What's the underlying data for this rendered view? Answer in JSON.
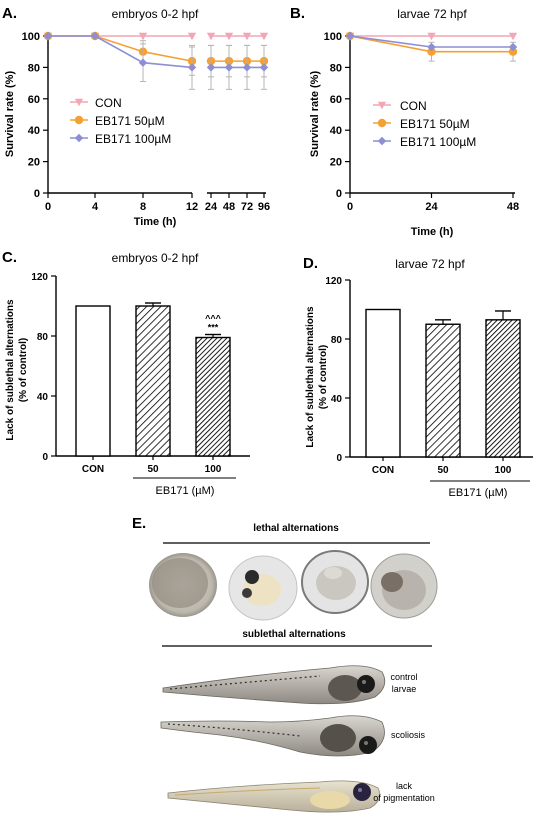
{
  "colors": {
    "con": "#f4a6b4",
    "eb50": "#f5a033",
    "eb100": "#8c8fd6",
    "axis": "#000000",
    "error": "#b5b5b5"
  },
  "panels": {
    "A": {
      "letter": "A."
    },
    "B": {
      "letter": "B."
    },
    "C": {
      "letter": "C."
    },
    "D": {
      "letter": "D."
    },
    "E": {
      "letter": "E."
    }
  },
  "chart_data": [
    {
      "id": "A",
      "type": "line",
      "title": "embryos 0-2 hpf",
      "xlabel": "Time (h)",
      "ylabel": "Survival rate (%)",
      "x_ticks": [
        "0",
        "4",
        "8",
        "12",
        "24",
        "48",
        "72",
        "96"
      ],
      "x_break": "between 12 and 24",
      "y_ticks": [
        "0",
        "20",
        "40",
        "60",
        "80",
        "100"
      ],
      "ylim": [
        0,
        100
      ],
      "legend": "inside-left",
      "series": [
        {
          "name": "CON",
          "marker": "triangle-down",
          "x": [
            "0",
            "4",
            "8",
            "12",
            "24",
            "48",
            "72",
            "96"
          ],
          "values": [
            100,
            100,
            100,
            100,
            100,
            100,
            100,
            100
          ],
          "err": [
            0,
            0,
            0,
            0,
            0,
            0,
            0,
            0
          ]
        },
        {
          "name": "EB171 50µM",
          "marker": "circle",
          "x": [
            "0",
            "4",
            "8",
            "12",
            "24",
            "48",
            "72",
            "96"
          ],
          "values": [
            100,
            100,
            90,
            84,
            84,
            84,
            84,
            84
          ],
          "err": [
            0,
            0,
            7,
            9,
            10,
            10,
            10,
            10
          ]
        },
        {
          "name": "EB171 100µM",
          "marker": "diamond",
          "x": [
            "0",
            "4",
            "8",
            "12",
            "24",
            "48",
            "72",
            "96"
          ],
          "values": [
            100,
            100,
            83,
            80,
            80,
            80,
            80,
            80
          ],
          "err": [
            0,
            0,
            12,
            14,
            14,
            14,
            14,
            14
          ]
        }
      ]
    },
    {
      "id": "B",
      "type": "line",
      "title": "larvae 72 hpf",
      "xlabel": "Time (h)",
      "ylabel": "Survival rate (%)",
      "x_ticks": [
        "0",
        "24",
        "48"
      ],
      "y_ticks": [
        "0",
        "20",
        "40",
        "60",
        "80",
        "100"
      ],
      "ylim": [
        0,
        100
      ],
      "xlim": [
        0,
        48
      ],
      "legend": "inside-center",
      "series": [
        {
          "name": "CON",
          "marker": "triangle-down",
          "x": [
            0,
            24,
            48
          ],
          "values": [
            100,
            100,
            100
          ],
          "err": [
            0,
            0,
            0
          ]
        },
        {
          "name": "EB171 50µM",
          "marker": "circle",
          "x": [
            0,
            24,
            48
          ],
          "values": [
            100,
            90,
            90
          ],
          "err": [
            0,
            6,
            6
          ]
        },
        {
          "name": "EB171 100µM",
          "marker": "diamond",
          "x": [
            0,
            24,
            48
          ],
          "values": [
            100,
            93,
            93
          ],
          "err": [
            0,
            0,
            0
          ]
        }
      ]
    },
    {
      "id": "C",
      "type": "bar",
      "title": "embryos 0-2 hpf",
      "ylabel": [
        "Lack of sublethal alternations",
        "(% of control)"
      ],
      "categories": [
        "CON",
        "50",
        "100"
      ],
      "values": [
        100,
        100,
        79
      ],
      "err": [
        0,
        2,
        2
      ],
      "fills": [
        "none",
        "hatch",
        "hatch-dark"
      ],
      "annotations": {
        "2": [
          "^^^",
          "***"
        ]
      },
      "group_label": "EB171 (µM)",
      "y_ticks": [
        "0",
        "40",
        "80",
        "120"
      ],
      "ylim": [
        0,
        120
      ]
    },
    {
      "id": "D",
      "type": "bar",
      "title": "larvae 72 hpf",
      "ylabel": [
        "Lack of sublethal alternations",
        "(% of control)"
      ],
      "categories": [
        "CON",
        "50",
        "100"
      ],
      "values": [
        100,
        90,
        93
      ],
      "err": [
        0,
        3,
        6
      ],
      "fills": [
        "none",
        "hatch",
        "hatch-dark"
      ],
      "group_label": "EB171 (µM)",
      "y_ticks": [
        "0",
        "40",
        "80",
        "120"
      ],
      "ylim": [
        0,
        120
      ]
    }
  ],
  "panelE": {
    "lethal_title": "lethal alternations",
    "sublethal_title": "sublethal alternations",
    "larva_labels": [
      [
        "control",
        "larvae"
      ],
      [
        "scoliosis"
      ],
      [
        "lack",
        "of pigmentation"
      ]
    ]
  }
}
